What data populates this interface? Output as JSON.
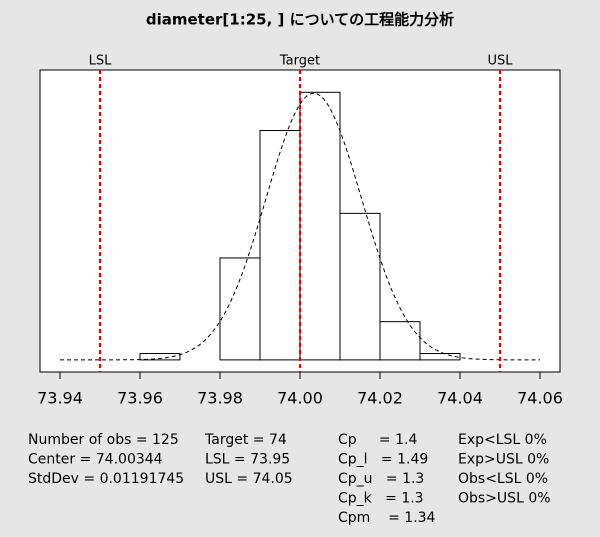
{
  "chart_data": {
    "type": "histogram",
    "title": "diameter[1:25, ] についての工程能力分析",
    "bins": [
      73.96,
      73.97,
      73.98,
      73.99,
      74.0,
      74.01,
      74.02,
      74.03,
      74.04
    ],
    "values": [
      1,
      0,
      16,
      36,
      42,
      23,
      6,
      1
    ],
    "xlim": [
      73.94,
      74.06
    ],
    "xticks": [
      {
        "value": 73.94,
        "label": "73.94"
      },
      {
        "value": 73.96,
        "label": "73.96"
      },
      {
        "value": 73.98,
        "label": "73.98"
      },
      {
        "value": 74.0,
        "label": "74.00"
      },
      {
        "value": 74.02,
        "label": "74.02"
      },
      {
        "value": 74.04,
        "label": "74.04"
      },
      {
        "value": 74.06,
        "label": "74.06"
      }
    ],
    "ylim": [
      -1.9,
      45.5
    ],
    "bar_color": "#ffffff",
    "spec_color": "#e00000",
    "spec_limits": [
      {
        "name": "LSL",
        "stat_label": "LSL =",
        "value": 73.95
      },
      {
        "name": "Target",
        "stat_label": "Target =",
        "value": 74
      },
      {
        "name": "USL",
        "stat_label": "USL =",
        "value": 74.05
      }
    ],
    "summary": [
      {
        "label": "Number of obs =",
        "value": 125
      },
      {
        "label": "Center =",
        "value": 74.00344
      },
      {
        "label": "StdDev =",
        "value": 0.01191745
      }
    ],
    "capability": [
      {
        "label": "Cp     =",
        "value": 1.4
      },
      {
        "label": "Cp_l   =",
        "value": 1.49
      },
      {
        "label": "Cp_u   =",
        "value": 1.3
      },
      {
        "label": "Cp_k   =",
        "value": 1.3
      },
      {
        "label": "Cpm    =",
        "value": 1.34
      }
    ],
    "exceedance": [
      "Exp<LSL 0%",
      "Exp>USL 0%",
      "Obs<LSL 0%",
      "Obs>USL 0%"
    ]
  }
}
